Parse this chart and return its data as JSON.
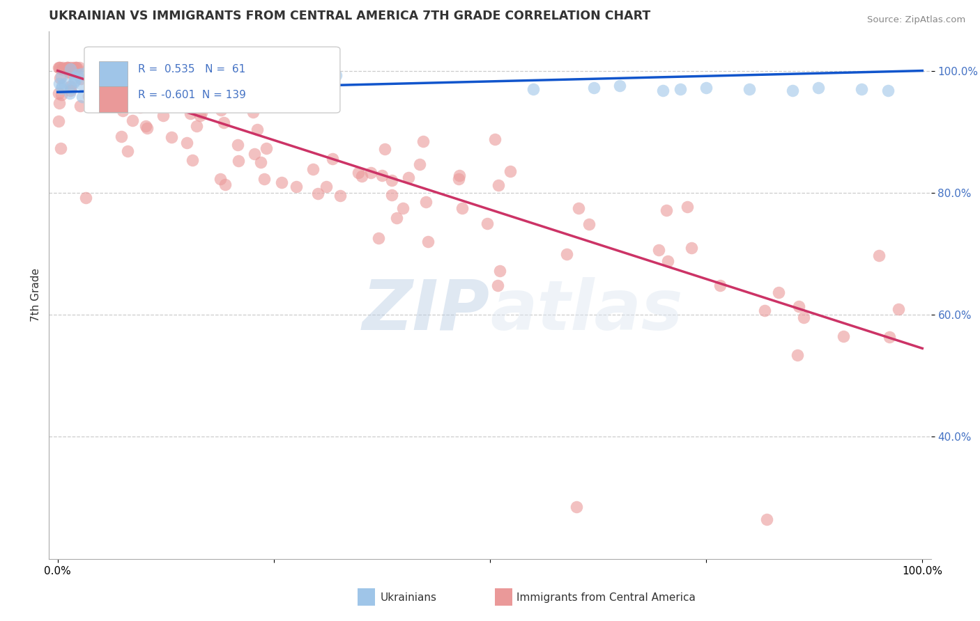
{
  "title": "UKRAINIAN VS IMMIGRANTS FROM CENTRAL AMERICA 7TH GRADE CORRELATION CHART",
  "source": "Source: ZipAtlas.com",
  "ylabel": "7th Grade",
  "blue_R": 0.535,
  "blue_N": 61,
  "pink_R": -0.601,
  "pink_N": 139,
  "blue_color": "#9fc5e8",
  "pink_color": "#ea9999",
  "blue_line_color": "#1155cc",
  "pink_line_color": "#cc3366",
  "legend_label_blue": "Ukrainians",
  "legend_label_pink": "Immigrants from Central America",
  "watermark_zip": "ZIP",
  "watermark_atlas": "atlas",
  "xlim": [
    0.0,
    1.0
  ],
  "ylim": [
    0.2,
    1.05
  ],
  "ytick_vals": [
    0.4,
    0.6,
    0.8,
    1.0
  ],
  "ytick_labels": [
    "40.0%",
    "60.0%",
    "80.0%",
    "100.0%"
  ],
  "tick_color": "#4472c4",
  "blue_line_x": [
    0.0,
    1.0
  ],
  "blue_line_y": [
    0.965,
    1.0
  ],
  "pink_line_x": [
    0.0,
    1.0
  ],
  "pink_line_y": [
    1.0,
    0.545
  ]
}
